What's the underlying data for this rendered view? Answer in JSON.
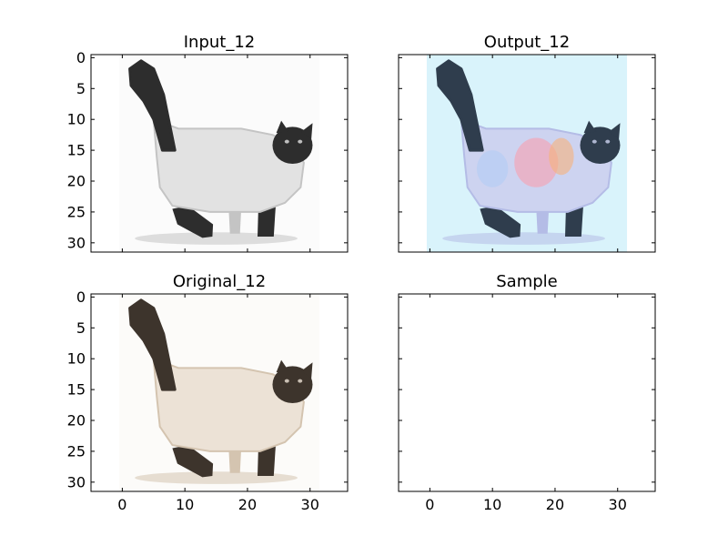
{
  "figure": {
    "background": "#ffffff",
    "layout": "2x2 grid of image panels",
    "shared_axes": true
  },
  "chart_data": [
    {
      "type": "image",
      "title": "Input_12",
      "content": "grayscale 32x32 image of a cat",
      "image_extent": [
        0,
        31
      ],
      "xlim": [
        -5,
        36
      ],
      "ylim": [
        31.5,
        -0.5
      ],
      "xticks": [
        0,
        10,
        20,
        30
      ],
      "yticks": [
        0,
        5,
        10,
        15,
        20,
        25,
        30
      ],
      "xtick_labels_visible": false,
      "ytick_labels_visible": true,
      "palette": {
        "fur": "#e2e2e2",
        "shade": "#c4c4c4",
        "dark": "#2d2d2d",
        "bg": "#fbfbfb"
      }
    },
    {
      "type": "image",
      "title": "Output_12",
      "content": "colorized 32x32 image of a cat",
      "image_extent": [
        0,
        31
      ],
      "xlim": [
        -5,
        36
      ],
      "ylim": [
        31.5,
        -0.5
      ],
      "xticks": [
        0,
        10,
        20,
        30
      ],
      "yticks": [
        0,
        5,
        10,
        15,
        20,
        25,
        30
      ],
      "xtick_labels_visible": false,
      "ytick_labels_visible": false,
      "palette": {
        "fur": "#cdd3f0",
        "shade": "#b4bce6",
        "dark": "#2f3d4d",
        "bg": "#d9f3fb"
      }
    },
    {
      "type": "image",
      "title": "Original_12",
      "content": "color 32x32 image of a cat",
      "image_extent": [
        0,
        31
      ],
      "xlim": [
        -5,
        36
      ],
      "ylim": [
        31.5,
        -0.5
      ],
      "xticks": [
        0,
        10,
        20,
        30
      ],
      "yticks": [
        0,
        5,
        10,
        15,
        20,
        25,
        30
      ],
      "xtick_labels_visible": true,
      "ytick_labels_visible": true,
      "palette": {
        "fur": "#ece2d6",
        "shade": "#d4c4b0",
        "dark": "#3d342c",
        "bg": "#fcfbf9"
      }
    },
    {
      "type": "image",
      "title": "Sample",
      "content": "empty",
      "xlim": [
        -5,
        36
      ],
      "ylim": [
        31.5,
        -0.5
      ],
      "xticks": [
        0,
        10,
        20,
        30
      ],
      "yticks": [
        0,
        5,
        10,
        15,
        20,
        25,
        30
      ],
      "xtick_labels_visible": true,
      "ytick_labels_visible": false
    }
  ]
}
